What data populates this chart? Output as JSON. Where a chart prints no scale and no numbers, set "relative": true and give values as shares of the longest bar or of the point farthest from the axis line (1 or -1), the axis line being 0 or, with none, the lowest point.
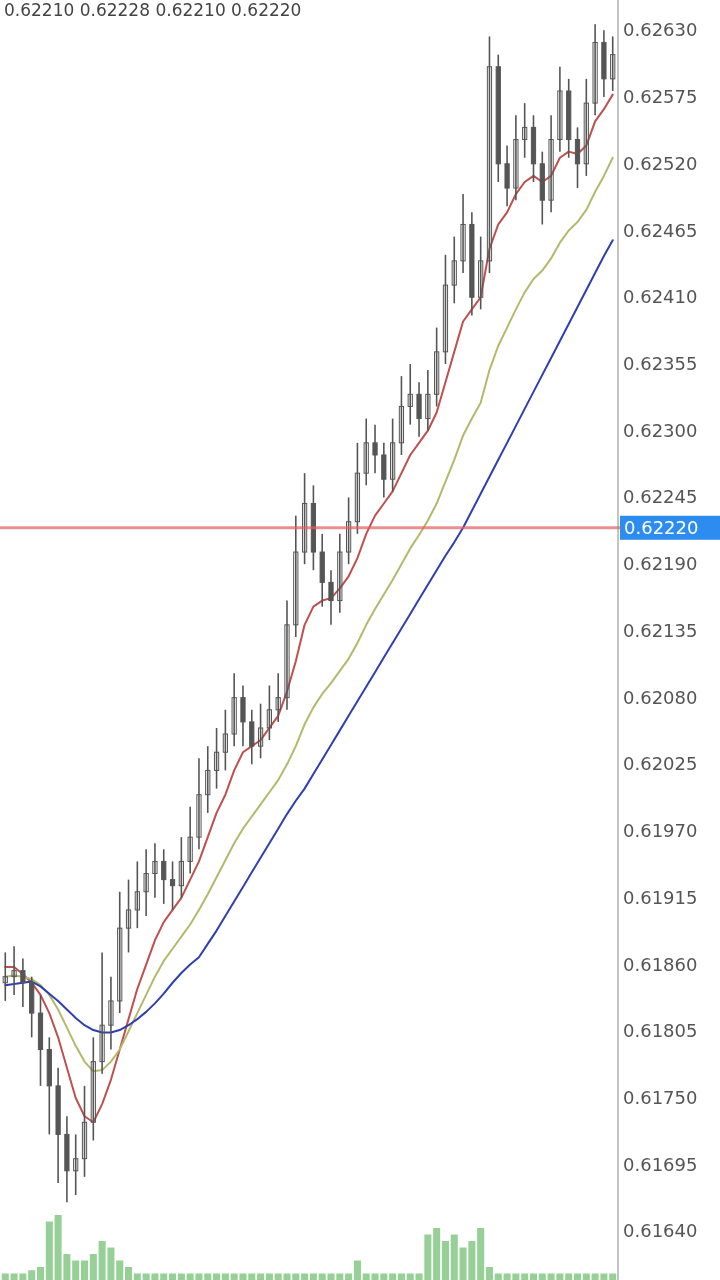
{
  "chart_data": [
    {
      "type": "candlestick",
      "annotations": [
        "0.62210 0.62228 0.62210 0.62220"
      ],
      "categories": [
        null,
        null,
        null,
        null,
        null,
        null,
        null,
        null,
        null,
        null,
        null,
        null,
        null,
        null,
        null,
        null,
        null,
        null,
        null,
        null,
        null,
        null,
        null,
        null,
        null,
        null,
        null,
        null,
        null,
        null,
        null,
        null,
        null,
        null,
        null,
        null,
        null,
        null,
        null,
        null,
        null,
        null,
        null,
        null,
        null,
        null,
        null,
        null,
        null,
        null,
        null,
        null,
        null,
        null,
        null,
        null,
        null,
        null,
        null,
        null,
        null,
        null,
        null,
        null,
        null,
        null,
        null,
        null,
        null,
        null
      ],
      "ohlc": [
        [
          0.61845,
          0.6187,
          0.6183,
          0.6185
        ],
        [
          0.6185,
          0.61875,
          0.61835,
          0.61855
        ],
        [
          0.61855,
          0.61865,
          0.61825,
          0.61845
        ],
        [
          0.61845,
          0.6185,
          0.618,
          0.6182
        ],
        [
          0.6182,
          0.61835,
          0.6176,
          0.6179
        ],
        [
          0.6179,
          0.618,
          0.6172,
          0.6176
        ],
        [
          0.6176,
          0.61775,
          0.6168,
          0.6172
        ],
        [
          0.6172,
          0.61735,
          0.61664,
          0.6169
        ],
        [
          0.6169,
          0.6172,
          0.6167,
          0.617
        ],
        [
          0.617,
          0.6176,
          0.61685,
          0.6173
        ],
        [
          0.6173,
          0.618,
          0.61715,
          0.6178
        ],
        [
          0.6178,
          0.6187,
          0.6177,
          0.6181
        ],
        [
          0.6181,
          0.6185,
          0.6179,
          0.6183
        ],
        [
          0.6183,
          0.6192,
          0.6182,
          0.6189
        ],
        [
          0.6189,
          0.6193,
          0.6187,
          0.61905
        ],
        [
          0.61905,
          0.61945,
          0.6189,
          0.6192
        ],
        [
          0.6192,
          0.61955,
          0.619,
          0.61935
        ],
        [
          0.61935,
          0.6196,
          0.61915,
          0.61945
        ],
        [
          0.61945,
          0.61955,
          0.6191,
          0.6193
        ],
        [
          0.6193,
          0.61945,
          0.61905,
          0.61925
        ],
        [
          0.61925,
          0.61965,
          0.61915,
          0.61945
        ],
        [
          0.61945,
          0.6199,
          0.61935,
          0.61965
        ],
        [
          0.61965,
          0.6203,
          0.61955,
          0.62
        ],
        [
          0.62,
          0.6204,
          0.61985,
          0.6202
        ],
        [
          0.6202,
          0.62055,
          0.62005,
          0.62035
        ],
        [
          0.62035,
          0.6207,
          0.6202,
          0.6205
        ],
        [
          0.6205,
          0.621,
          0.6204,
          0.6208
        ],
        [
          0.6208,
          0.6209,
          0.6204,
          0.6206
        ],
        [
          0.6206,
          0.6207,
          0.62025,
          0.6204
        ],
        [
          0.6204,
          0.62075,
          0.6203,
          0.62055
        ],
        [
          0.62055,
          0.6209,
          0.62045,
          0.6207
        ],
        [
          0.6207,
          0.621,
          0.6206,
          0.6208
        ],
        [
          0.6208,
          0.6216,
          0.6207,
          0.6214
        ],
        [
          0.6214,
          0.6223,
          0.6213,
          0.622
        ],
        [
          0.622,
          0.62265,
          0.6219,
          0.6224
        ],
        [
          0.6224,
          0.62255,
          0.62185,
          0.622
        ],
        [
          0.622,
          0.62215,
          0.62155,
          0.62175
        ],
        [
          0.62175,
          0.62185,
          0.6214,
          0.6216
        ],
        [
          0.6216,
          0.62215,
          0.6215,
          0.622
        ],
        [
          0.622,
          0.62245,
          0.6219,
          0.62225
        ],
        [
          0.62225,
          0.6229,
          0.62215,
          0.62265
        ],
        [
          0.62265,
          0.6231,
          0.62255,
          0.6229
        ],
        [
          0.6229,
          0.62305,
          0.62265,
          0.6228
        ],
        [
          0.6228,
          0.6229,
          0.62245,
          0.6226
        ],
        [
          0.6226,
          0.6231,
          0.6225,
          0.6229
        ],
        [
          0.6229,
          0.62345,
          0.6228,
          0.6232
        ],
        [
          0.6232,
          0.62355,
          0.62305,
          0.6233
        ],
        [
          0.6233,
          0.6234,
          0.62295,
          0.6231
        ],
        [
          0.6231,
          0.6235,
          0.623,
          0.6233
        ],
        [
          0.6233,
          0.62385,
          0.6232,
          0.62365
        ],
        [
          0.62365,
          0.62445,
          0.62355,
          0.6242
        ],
        [
          0.6242,
          0.6246,
          0.62405,
          0.6244
        ],
        [
          0.6244,
          0.62495,
          0.6243,
          0.6247
        ],
        [
          0.6247,
          0.6248,
          0.62395,
          0.6241
        ],
        [
          0.6241,
          0.6246,
          0.624,
          0.6244
        ],
        [
          0.6244,
          0.62625,
          0.6243,
          0.626
        ],
        [
          0.626,
          0.6261,
          0.62505,
          0.6252
        ],
        [
          0.6252,
          0.62535,
          0.62485,
          0.625
        ],
        [
          0.625,
          0.6256,
          0.6249,
          0.6254
        ],
        [
          0.6254,
          0.6257,
          0.62525,
          0.6255
        ],
        [
          0.6255,
          0.6256,
          0.62505,
          0.6252
        ],
        [
          0.6252,
          0.6253,
          0.6247,
          0.6249
        ],
        [
          0.6249,
          0.6256,
          0.6248,
          0.6254
        ],
        [
          0.6254,
          0.626,
          0.6253,
          0.6258
        ],
        [
          0.6258,
          0.6259,
          0.62525,
          0.6254
        ],
        [
          0.6254,
          0.6255,
          0.625,
          0.6252
        ],
        [
          0.6252,
          0.6259,
          0.6251,
          0.6257
        ],
        [
          0.6257,
          0.62635,
          0.6256,
          0.6262
        ],
        [
          0.6262,
          0.6263,
          0.62575,
          0.6259
        ],
        [
          0.6259,
          0.62625,
          0.6258,
          0.6261
        ]
      ],
      "series": [
        {
          "type": "line",
          "color": "#c0504d",
          "values": [
            0.61858,
            0.61858,
            0.61852,
            0.61845,
            0.61835,
            0.6182,
            0.618,
            0.61775,
            0.6175,
            0.61735,
            0.6173,
            0.61745,
            0.61765,
            0.6179,
            0.61815,
            0.6184,
            0.6186,
            0.6188,
            0.61895,
            0.61905,
            0.61915,
            0.6193,
            0.61945,
            0.61965,
            0.61985,
            0.62,
            0.6202,
            0.62035,
            0.6204,
            0.62045,
            0.62055,
            0.62065,
            0.62085,
            0.6211,
            0.6214,
            0.62155,
            0.6216,
            0.62162,
            0.6217,
            0.6218,
            0.62195,
            0.62215,
            0.6223,
            0.6224,
            0.6225,
            0.62265,
            0.6228,
            0.6229,
            0.623,
            0.62315,
            0.6234,
            0.62365,
            0.6239,
            0.624,
            0.6241,
            0.6245,
            0.6247,
            0.6248,
            0.62495,
            0.62505,
            0.6251,
            0.62505,
            0.6251,
            0.62525,
            0.6253,
            0.62528,
            0.62535,
            0.62555,
            0.62565,
            0.62577
          ]
        },
        {
          "type": "line",
          "color": "#b5b86a",
          "values": [
            0.6185,
            0.61851,
            0.6185,
            0.61848,
            0.61843,
            0.61835,
            0.61823,
            0.61808,
            0.61793,
            0.6178,
            0.61772,
            0.61773,
            0.6178,
            0.6179,
            0.61805,
            0.6182,
            0.61835,
            0.6185,
            0.61863,
            0.61873,
            0.61883,
            0.61893,
            0.61905,
            0.61918,
            0.61932,
            0.61946,
            0.6196,
            0.61972,
            0.61982,
            0.61992,
            0.62002,
            0.62012,
            0.62025,
            0.6204,
            0.62058,
            0.62072,
            0.62083,
            0.62092,
            0.62102,
            0.62112,
            0.62125,
            0.6214,
            0.62153,
            0.62165,
            0.62177,
            0.6219,
            0.62203,
            0.62214,
            0.62226,
            0.6224,
            0.62258,
            0.62276,
            0.62296,
            0.6231,
            0.62323,
            0.6235,
            0.6237,
            0.62385,
            0.624,
            0.62414,
            0.62425,
            0.62432,
            0.62442,
            0.62455,
            0.62465,
            0.62472,
            0.62482,
            0.62497,
            0.6251,
            0.62525
          ]
        },
        {
          "type": "line",
          "color": "#2e3fb0",
          "values": [
            0.61843,
            0.61844,
            0.61845,
            0.61846,
            0.61842,
            0.61836,
            0.6183,
            0.61823,
            0.61816,
            0.6181,
            0.61806,
            0.61804,
            0.61804,
            0.61806,
            0.6181,
            0.61815,
            0.61821,
            0.61828,
            0.61836,
            0.61845,
            0.61853,
            0.6186,
            0.61866,
            0.61877,
            0.61888,
            0.619,
            0.61912,
            0.61924,
            0.61936,
            0.61948,
            0.6196,
            0.61972,
            0.61984,
            0.61995,
            0.62005,
            0.62017,
            0.62029,
            0.62041,
            0.62053,
            0.62065,
            0.62077,
            0.62089,
            0.62101,
            0.62113,
            0.62125,
            0.62137,
            0.62149,
            0.62161,
            0.62173,
            0.62185,
            0.62197,
            0.62208,
            0.6222,
            0.62234,
            0.62248,
            0.62262,
            0.62276,
            0.6229,
            0.62304,
            0.62318,
            0.62332,
            0.62346,
            0.6236,
            0.62374,
            0.62388,
            0.62402,
            0.62416,
            0.6243,
            0.62444,
            0.62457
          ]
        }
      ],
      "ylim": [
        0.616,
        0.62655
      ],
      "yticks": [
        {
          "value": 0.6164,
          "label": "0.61640"
        },
        {
          "value": 0.61695,
          "label": "0.61695"
        },
        {
          "value": 0.6175,
          "label": "0.61750"
        },
        {
          "value": 0.61805,
          "label": "0.61805"
        },
        {
          "value": 0.6186,
          "label": "0.61860"
        },
        {
          "value": 0.61915,
          "label": "0.61915"
        },
        {
          "value": 0.6197,
          "label": "0.61970"
        },
        {
          "value": 0.62025,
          "label": "0.62025"
        },
        {
          "value": 0.6208,
          "label": "0.62080"
        },
        {
          "value": 0.62135,
          "label": "0.62135"
        },
        {
          "value": 0.6219,
          "label": "0.62190"
        },
        {
          "value": 0.62245,
          "label": "0.62245"
        },
        {
          "value": 0.623,
          "label": "0.62300"
        },
        {
          "value": 0.62355,
          "label": "0.62355"
        },
        {
          "value": 0.6241,
          "label": "0.62410"
        },
        {
          "value": 0.62465,
          "label": "0.62465"
        },
        {
          "value": 0.6252,
          "label": "0.62520"
        },
        {
          "value": 0.62575,
          "label": "0.62575"
        },
        {
          "value": 0.6263,
          "label": "0.62630"
        }
      ],
      "ref_lines": [
        {
          "axis": "y",
          "value": 0.6222,
          "label": "0.62220",
          "color": "#e06060"
        }
      ],
      "tick_labels": "y",
      "grid": false
    },
    {
      "type": "bar",
      "relative": true,
      "color": "#7cc47c",
      "categories": [
        null,
        null,
        null,
        null,
        null,
        null,
        null,
        null,
        null,
        null,
        null,
        null,
        null,
        null,
        null,
        null,
        null,
        null,
        null,
        null,
        null,
        null,
        null,
        null,
        null,
        null,
        null,
        null,
        null,
        null,
        null,
        null,
        null,
        null,
        null,
        null,
        null,
        null,
        null,
        null,
        null,
        null,
        null,
        null,
        null,
        null,
        null,
        null,
        null,
        null,
        null,
        null,
        null,
        null,
        null,
        null,
        null,
        null,
        null,
        null,
        null,
        null,
        null,
        null,
        null,
        null,
        null,
        null,
        null,
        null
      ],
      "values": [
        0.1,
        0.1,
        0.1,
        0.15,
        0.2,
        0.9,
        1,
        0.4,
        0.3,
        0.3,
        0.4,
        0.6,
        0.5,
        0.3,
        0.2,
        0.1,
        0.1,
        0.1,
        0.1,
        0.1,
        0.1,
        0.1,
        0.1,
        0.1,
        0.1,
        0.1,
        0.1,
        0.1,
        0.1,
        0.1,
        0.1,
        0.1,
        0.1,
        0.1,
        0.1,
        0.1,
        0.1,
        0.1,
        0.1,
        0.1,
        0.3,
        0.1,
        0.1,
        0.1,
        0.1,
        0.1,
        0.1,
        0.1,
        0.7,
        0.8,
        0.6,
        0.7,
        0.5,
        0.6,
        0.8,
        0.2,
        0.1,
        0.1,
        0.1,
        0.1,
        0.1,
        0.1,
        0.1,
        0.1,
        0.1,
        0.1,
        0.1,
        0.1,
        0.1,
        0.1
      ]
    }
  ]
}
